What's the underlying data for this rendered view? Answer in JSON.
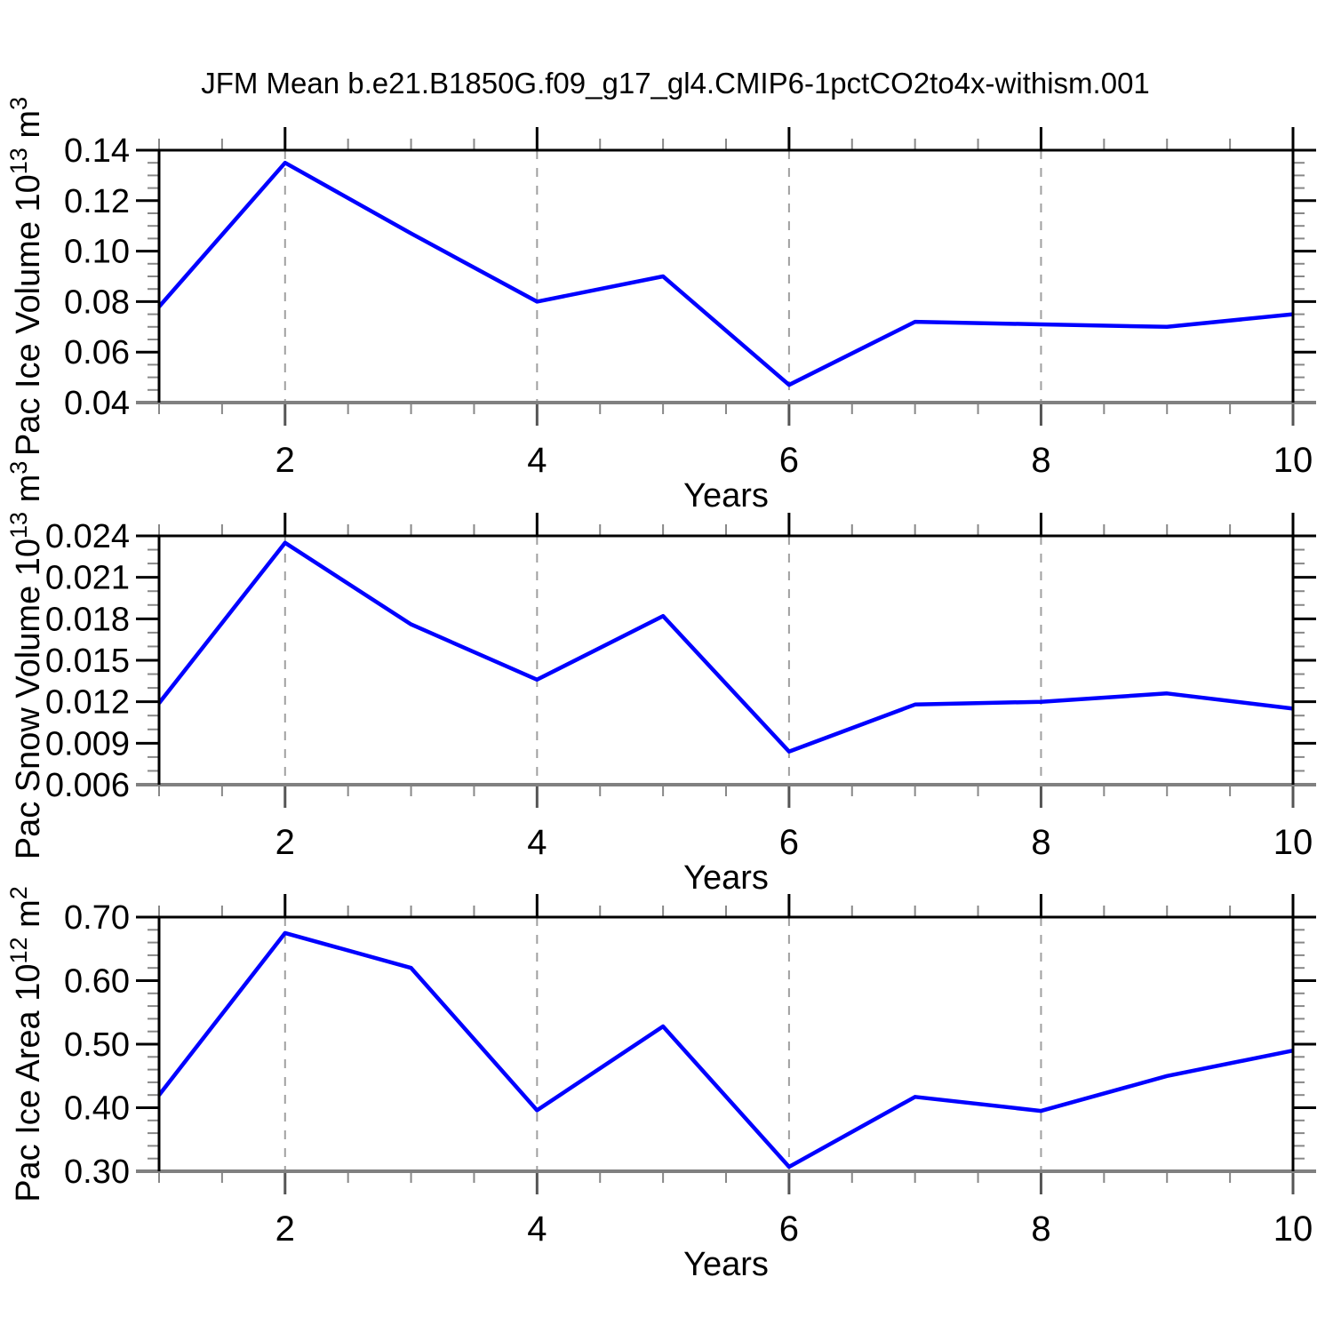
{
  "title": "JFM Mean b.e21.B1850G.f09_g17_gl4.CMIP6-1pctCO2to4x-withism.001",
  "colors": {
    "line": "#0000ff",
    "grid": "#a0a0a0",
    "axis": "#000000",
    "axis_bottom": "#808080",
    "tick_major_top": "#000000",
    "tick_major_bottom": "#555555",
    "tick_minor": "#888888"
  },
  "chart_data": [
    {
      "type": "line",
      "ylabel": {
        "base": "Pac Ice Volume 10",
        "exponent": "13",
        "unit": "m",
        "unit_exponent": "3"
      },
      "xlabel": "Years",
      "x": [
        1,
        2,
        3,
        4,
        5,
        6,
        7,
        8,
        9,
        10
      ],
      "values": [
        0.078,
        0.135,
        0.107,
        0.08,
        0.09,
        0.047,
        0.072,
        0.071,
        0.07,
        0.075
      ],
      "xlim": [
        1,
        10
      ],
      "ylim": [
        0.04,
        0.14
      ],
      "xticks": [
        2,
        4,
        6,
        8,
        10
      ],
      "xtick_labels": [
        "2",
        "4",
        "6",
        "8",
        "10"
      ],
      "x_minor_step": 0.5,
      "yticks": [
        0.04,
        0.06,
        0.08,
        0.1,
        0.12,
        0.14
      ],
      "ytick_labels": [
        "0.04",
        "0.06",
        "0.08",
        "0.10",
        "0.12",
        "0.14"
      ],
      "y_minor_step": 0.005,
      "grid_x": [
        2,
        4,
        6,
        8
      ],
      "legend": "none",
      "grid": "vertical-dashed"
    },
    {
      "type": "line",
      "ylabel": {
        "base": "Pac Snow Volume 10",
        "exponent": "13",
        "unit": "m",
        "unit_exponent": "3"
      },
      "xlabel": "Years",
      "x": [
        1,
        2,
        3,
        4,
        5,
        6,
        7,
        8,
        9,
        10
      ],
      "values": [
        0.0119,
        0.0235,
        0.0176,
        0.0136,
        0.0182,
        0.0084,
        0.0118,
        0.012,
        0.0126,
        0.0115
      ],
      "xlim": [
        1,
        10
      ],
      "ylim": [
        0.006,
        0.024
      ],
      "xticks": [
        2,
        4,
        6,
        8,
        10
      ],
      "xtick_labels": [
        "2",
        "4",
        "6",
        "8",
        "10"
      ],
      "x_minor_step": 0.5,
      "yticks": [
        0.006,
        0.009,
        0.012,
        0.015,
        0.018,
        0.021,
        0.024
      ],
      "ytick_labels": [
        "0.006",
        "0.009",
        "0.012",
        "0.015",
        "0.018",
        "0.021",
        "0.024"
      ],
      "y_minor_step": 0.001,
      "grid_x": [
        2,
        4,
        6,
        8
      ],
      "legend": "none",
      "grid": "vertical-dashed"
    },
    {
      "type": "line",
      "ylabel": {
        "base": "Pac Ice Area 10",
        "exponent": "12",
        "unit": "m",
        "unit_exponent": "2"
      },
      "xlabel": "Years",
      "x": [
        1,
        2,
        3,
        4,
        5,
        6,
        7,
        8,
        9,
        10
      ],
      "values": [
        0.42,
        0.675,
        0.62,
        0.396,
        0.528,
        0.307,
        0.417,
        0.395,
        0.45,
        0.49
      ],
      "xlim": [
        1,
        10
      ],
      "ylim": [
        0.3,
        0.7
      ],
      "xticks": [
        2,
        4,
        6,
        8,
        10
      ],
      "xtick_labels": [
        "2",
        "4",
        "6",
        "8",
        "10"
      ],
      "x_minor_step": 0.5,
      "yticks": [
        0.3,
        0.4,
        0.5,
        0.6,
        0.7
      ],
      "ytick_labels": [
        "0.30",
        "0.40",
        "0.50",
        "0.60",
        "0.70"
      ],
      "y_minor_step": 0.02,
      "grid_x": [
        2,
        4,
        6,
        8
      ],
      "legend": "none",
      "grid": "vertical-dashed"
    }
  ]
}
